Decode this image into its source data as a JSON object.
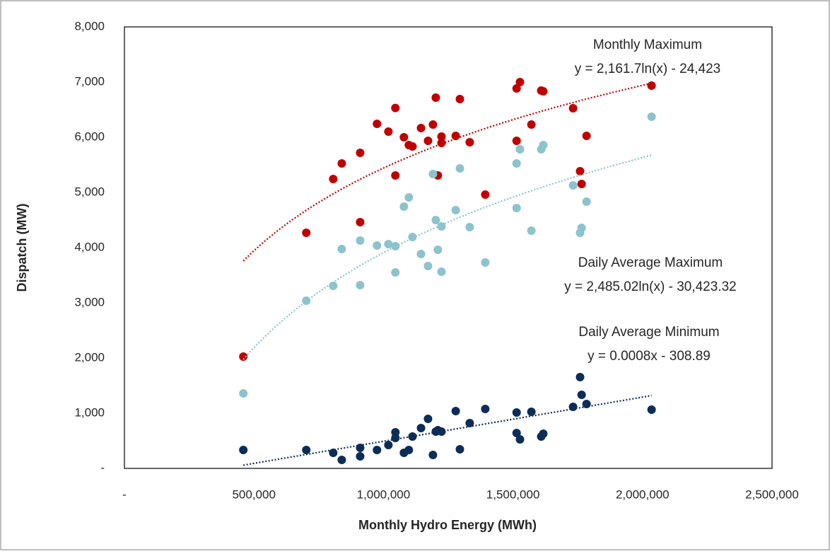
{
  "chart_data": {
    "type": "scatter",
    "xlabel": "Monthly Hydro Energy (MWh)",
    "ylabel": "Dispatch (MW)",
    "xlim": [
      0,
      2500000
    ],
    "ylim": [
      0,
      8000
    ],
    "xticks": [
      {
        "value": 0,
        "label": "-"
      },
      {
        "value": 500000,
        "label": "500,000"
      },
      {
        "value": 1000000,
        "label": "1,000,000"
      },
      {
        "value": 1500000,
        "label": "1,500,000"
      },
      {
        "value": 2000000,
        "label": "2,000,000"
      },
      {
        "value": 2500000,
        "label": "2,500,000"
      }
    ],
    "yticks": [
      {
        "value": 0,
        "label": "-"
      },
      {
        "value": 1000,
        "label": "1,000"
      },
      {
        "value": 2000,
        "label": "2,000"
      },
      {
        "value": 3000,
        "label": "3,000"
      },
      {
        "value": 4000,
        "label": "4,000"
      },
      {
        "value": 5000,
        "label": "5,000"
      },
      {
        "value": 6000,
        "label": "6,000"
      },
      {
        "value": 7000,
        "label": "7,000"
      },
      {
        "value": 8000,
        "label": "8,000"
      }
    ],
    "series": [
      {
        "name": "Monthly Maximum",
        "color": "#c00000",
        "equation": "y = 2,161.7ln(x) - 24,423",
        "trendline": {
          "kind": "log",
          "a": 2161.7,
          "b": -24423
        },
        "x": [
          459000,
          702000,
          806000,
          839000,
          910000,
          910000,
          975000,
          1019000,
          1046000,
          1046000,
          1079000,
          1098000,
          1112000,
          1145000,
          1172000,
          1191000,
          1202000,
          1210000,
          1224000,
          1224000,
          1279000,
          1295000,
          1333000,
          1393000,
          1514000,
          1527000,
          1514000,
          1571000,
          1609000,
          1617000,
          1732000,
          1759000,
          1765000,
          1784000,
          2035000
        ],
        "values": [
          2026,
          4269,
          5243,
          5525,
          5718,
          4461,
          6243,
          6102,
          6530,
          5308,
          6000,
          5859,
          5833,
          6166,
          5936,
          6230,
          6718,
          5308,
          6013,
          5897,
          6025,
          6692,
          5910,
          4961,
          6884,
          7000,
          5936,
          6230,
          6846,
          6833,
          6525,
          5384,
          5154,
          6025,
          6936
        ]
      },
      {
        "name": "Daily Average Maximum",
        "color": "#8cc3cc",
        "equation": "y = 2,485.02ln(x) - 30,423.32",
        "trendline": {
          "kind": "log",
          "a": 2485.02,
          "b": -30423.32
        },
        "x": [
          459000,
          702000,
          806000,
          839000,
          910000,
          910000,
          975000,
          1019000,
          1046000,
          1046000,
          1079000,
          1098000,
          1112000,
          1145000,
          1172000,
          1191000,
          1202000,
          1210000,
          1224000,
          1224000,
          1279000,
          1295000,
          1333000,
          1393000,
          1514000,
          1527000,
          1514000,
          1571000,
          1609000,
          1617000,
          1732000,
          1759000,
          1765000,
          1784000,
          2035000
        ],
        "values": [
          1359,
          3038,
          3307,
          3974,
          4128,
          3320,
          4038,
          4064,
          4025,
          3551,
          4743,
          4910,
          4192,
          3884,
          3667,
          5333,
          4500,
          3961,
          4384,
          3564,
          4679,
          5436,
          4372,
          3731,
          5525,
          5782,
          4718,
          4308,
          5782,
          5859,
          5128,
          4269,
          4359,
          4833,
          6371
        ]
      },
      {
        "name": "Daily Average Minimum",
        "color": "#0c2d57",
        "equation": "y = 0.0008x - 308.89",
        "trendline": {
          "kind": "linear",
          "a": 0.0008,
          "b": -308.89
        },
        "x": [
          459000,
          702000,
          806000,
          839000,
          910000,
          910000,
          975000,
          1019000,
          1046000,
          1046000,
          1079000,
          1098000,
          1112000,
          1145000,
          1172000,
          1191000,
          1202000,
          1210000,
          1224000,
          1279000,
          1295000,
          1333000,
          1393000,
          1514000,
          1527000,
          1514000,
          1571000,
          1609000,
          1617000,
          1732000,
          1759000,
          1765000,
          1784000,
          2035000
        ],
        "values": [
          333,
          333,
          282,
          154,
          372,
          218,
          333,
          423,
          654,
          551,
          282,
          333,
          577,
          731,
          897,
          244,
          667,
          692,
          667,
          1038,
          346,
          820,
          1077,
          1013,
          526,
          641,
          1026,
          577,
          628,
          1115,
          1654,
          1333,
          1167,
          1064
        ]
      }
    ]
  }
}
